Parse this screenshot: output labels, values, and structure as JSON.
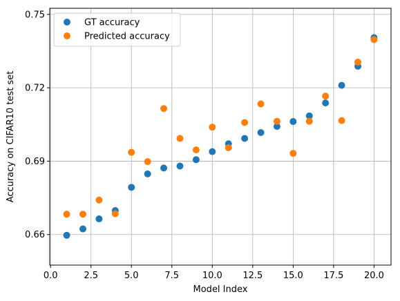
{
  "chart_data": {
    "type": "scatter",
    "title": "",
    "xlabel": "Model Index",
    "ylabel": "Accuracy on CIFAR10 test set",
    "xlim": [
      -0.05,
      21.05
    ],
    "ylim": [
      0.6475,
      0.7525
    ],
    "xticks": [
      0.0,
      2.5,
      5.0,
      7.5,
      10.0,
      12.5,
      15.0,
      17.5,
      20.0
    ],
    "xtick_labels": [
      "0.0",
      "2.5",
      "5.0",
      "7.5",
      "10.0",
      "12.5",
      "15.0",
      "17.5",
      "20.0"
    ],
    "yticks": [
      0.66,
      0.69,
      0.72,
      0.75
    ],
    "ytick_labels": [
      "0.66",
      "0.69",
      "0.72",
      "0.75"
    ],
    "grid": true,
    "legend_position": "top-left",
    "x": [
      1,
      2,
      3,
      4,
      5,
      6,
      7,
      8,
      9,
      10,
      11,
      12,
      13,
      14,
      15,
      16,
      17,
      18,
      19,
      20
    ],
    "series": [
      {
        "name": "GT accuracy",
        "color": "#1f77b4",
        "values": [
          0.6597,
          0.6623,
          0.6664,
          0.6698,
          0.6793,
          0.6848,
          0.6872,
          0.688,
          0.6906,
          0.6939,
          0.6971,
          0.6993,
          0.7017,
          0.7042,
          0.7062,
          0.7085,
          0.7138,
          0.721,
          0.7288,
          0.7405
        ]
      },
      {
        "name": "Predicted accuracy",
        "color": "#ff7f0e",
        "values": [
          0.6683,
          0.6683,
          0.6741,
          0.6685,
          0.6936,
          0.6898,
          0.7115,
          0.6993,
          0.6946,
          0.7039,
          0.6955,
          0.7058,
          0.7134,
          0.7063,
          0.6932,
          0.7063,
          0.7166,
          0.7066,
          0.7305,
          0.7397
        ]
      }
    ]
  }
}
